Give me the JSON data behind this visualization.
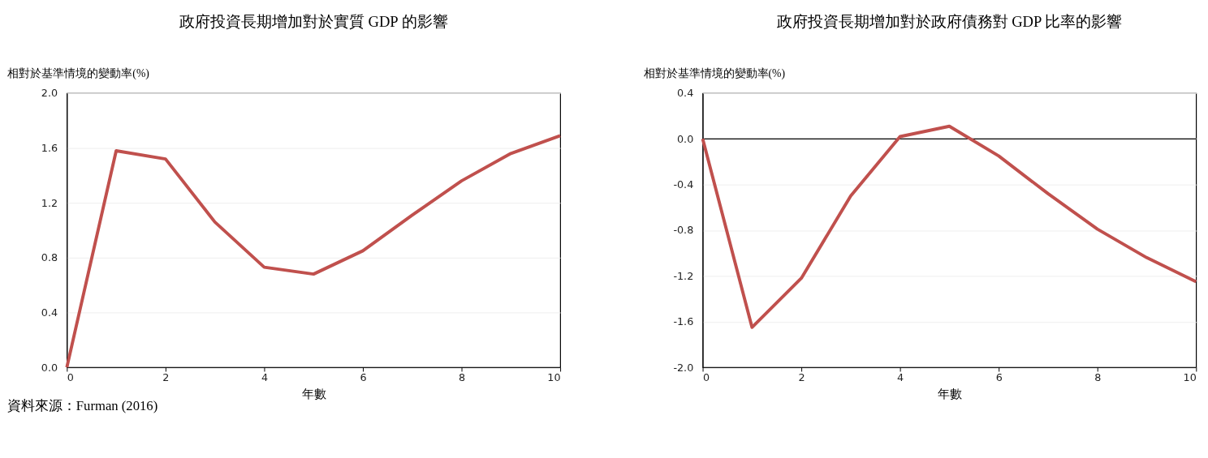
{
  "chart_data": [
    {
      "type": "line",
      "title": "政府投資長期增加對於實質 GDP 的影響",
      "ylabel": "相對於基準情境的變動率(%)",
      "xlabel": "年數",
      "x": [
        0,
        1,
        2,
        3,
        4,
        5,
        6,
        7,
        8,
        9,
        10
      ],
      "series": [
        {
          "color": "#c0504d",
          "values": [
            0,
            1.58,
            1.52,
            1.06,
            0.73,
            0.68,
            0.85,
            1.11,
            1.36,
            1.56,
            1.69
          ]
        }
      ],
      "xlim": [
        0,
        10
      ],
      "xticks": [
        0,
        2,
        4,
        6,
        8,
        10
      ],
      "ylim": [
        0,
        2.0
      ],
      "yticks": [
        {
          "value": 0,
          "label": "0.0"
        },
        {
          "value": 0.4,
          "label": "0.4"
        },
        {
          "value": 0.8,
          "label": "0.8"
        },
        {
          "value": 1.2,
          "label": "1.2"
        },
        {
          "value": 1.6,
          "label": "1.6"
        },
        {
          "value": 2.0,
          "label": "2.0"
        }
      ],
      "grid": "y",
      "marker": "none",
      "line_style": "solid",
      "annotations": [
        "資料來源：Furman (2016)"
      ]
    },
    {
      "type": "line",
      "title": "政府投資長期增加對於政府債務對 GDP 比率的影響",
      "ylabel": "相對於基準情境的變動率(%)",
      "xlabel": "年數",
      "x": [
        0,
        1,
        2,
        3,
        4,
        5,
        6,
        7,
        8,
        9,
        10
      ],
      "series": [
        {
          "color": "#c0504d",
          "values": [
            0,
            -1.65,
            -1.22,
            -0.5,
            0.02,
            0.11,
            -0.15,
            -0.48,
            -0.79,
            -1.04,
            -1.25
          ]
        }
      ],
      "xlim": [
        0,
        10
      ],
      "xticks": [
        0,
        2,
        4,
        6,
        8,
        10
      ],
      "ylim": [
        -2.0,
        0.4
      ],
      "yticks": [
        {
          "value": -2.0,
          "label": "-2.0"
        },
        {
          "value": -1.6,
          "label": "-1.6"
        },
        {
          "value": -1.2,
          "label": "-1.2"
        },
        {
          "value": -0.8,
          "label": "-0.8"
        },
        {
          "value": -0.4,
          "label": "-0.4"
        },
        {
          "value": 0,
          "label": "0.0"
        },
        {
          "value": 0.4,
          "label": "0.4"
        }
      ],
      "ref_lines": [
        {
          "axis": "y",
          "value": 0,
          "color": "#000000"
        }
      ],
      "grid": "y",
      "marker": "none",
      "line_style": "solid"
    }
  ]
}
